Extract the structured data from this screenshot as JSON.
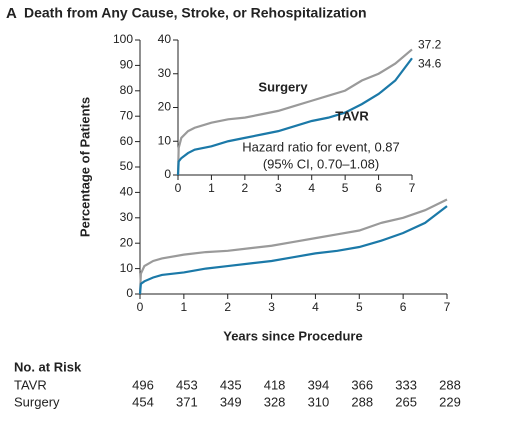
{
  "chart_data": [
    {
      "type": "line",
      "panel": "A",
      "title": "Death from Any Cause, Stroke, or Rehospitalization",
      "x_label": "Years since Procedure",
      "y_label": "Percentage of Patients",
      "xlim": [
        0,
        7
      ],
      "xticks": [
        0,
        1,
        2,
        3,
        4,
        5,
        6,
        7
      ],
      "ylim": [
        0,
        100
      ],
      "yticks": [
        0,
        10,
        20,
        30,
        40,
        50,
        60,
        70,
        80,
        90,
        100
      ],
      "x": [
        0,
        0.02,
        0.1,
        0.3,
        0.5,
        1,
        1.5,
        2,
        2.5,
        3,
        3.5,
        4,
        4.5,
        5,
        5.5,
        6,
        6.5,
        7
      ],
      "series": [
        {
          "color": "#9a9a9a",
          "values": [
            0,
            8,
            11,
            13,
            14,
            15.5,
            16.5,
            17,
            18,
            19,
            20.5,
            22,
            23.5,
            25,
            28,
            30,
            33,
            37.2
          ]
        },
        {
          "color": "#1b79a8",
          "values": [
            0,
            4,
            5,
            6.5,
            7.5,
            8.5,
            10,
            11,
            12,
            13,
            14.5,
            16,
            17,
            18.5,
            21,
            24,
            28,
            34.6
          ]
        }
      ]
    },
    {
      "type": "line",
      "xlim": [
        0,
        7
      ],
      "xticks": [
        0,
        1,
        2,
        3,
        4,
        5,
        6,
        7
      ],
      "ylim": [
        0,
        40
      ],
      "yticks": [
        0,
        10,
        20,
        30,
        40
      ],
      "x": [
        0,
        0.02,
        0.1,
        0.3,
        0.5,
        1,
        1.5,
        2,
        2.5,
        3,
        3.5,
        4,
        4.5,
        5,
        5.5,
        6,
        6.5,
        7
      ],
      "series": [
        {
          "name": "Surgery",
          "color": "#9a9a9a",
          "values": [
            0,
            8,
            11,
            13,
            14,
            15.5,
            16.5,
            17,
            18,
            19,
            20.5,
            22,
            23.5,
            25,
            28,
            30,
            33,
            37.2
          ]
        },
        {
          "name": "TAVR",
          "color": "#1b79a8",
          "values": [
            0,
            4,
            5,
            6.5,
            7.5,
            8.5,
            10,
            11,
            12,
            13,
            14.5,
            16,
            17,
            18.5,
            21,
            24,
            28,
            34.6
          ]
        }
      ],
      "annotations": [
        "Hazard ratio for event, 0.87",
        "(95% CI, 0.70–1.08)"
      ]
    }
  ],
  "risk_table": {
    "title": "No. at Risk",
    "rows": [
      {
        "label": "TAVR",
        "values": [
          496,
          453,
          435,
          418,
          394,
          366,
          333,
          288
        ]
      },
      {
        "label": "Surgery",
        "values": [
          454,
          371,
          349,
          328,
          310,
          288,
          265,
          229
        ]
      }
    ]
  }
}
